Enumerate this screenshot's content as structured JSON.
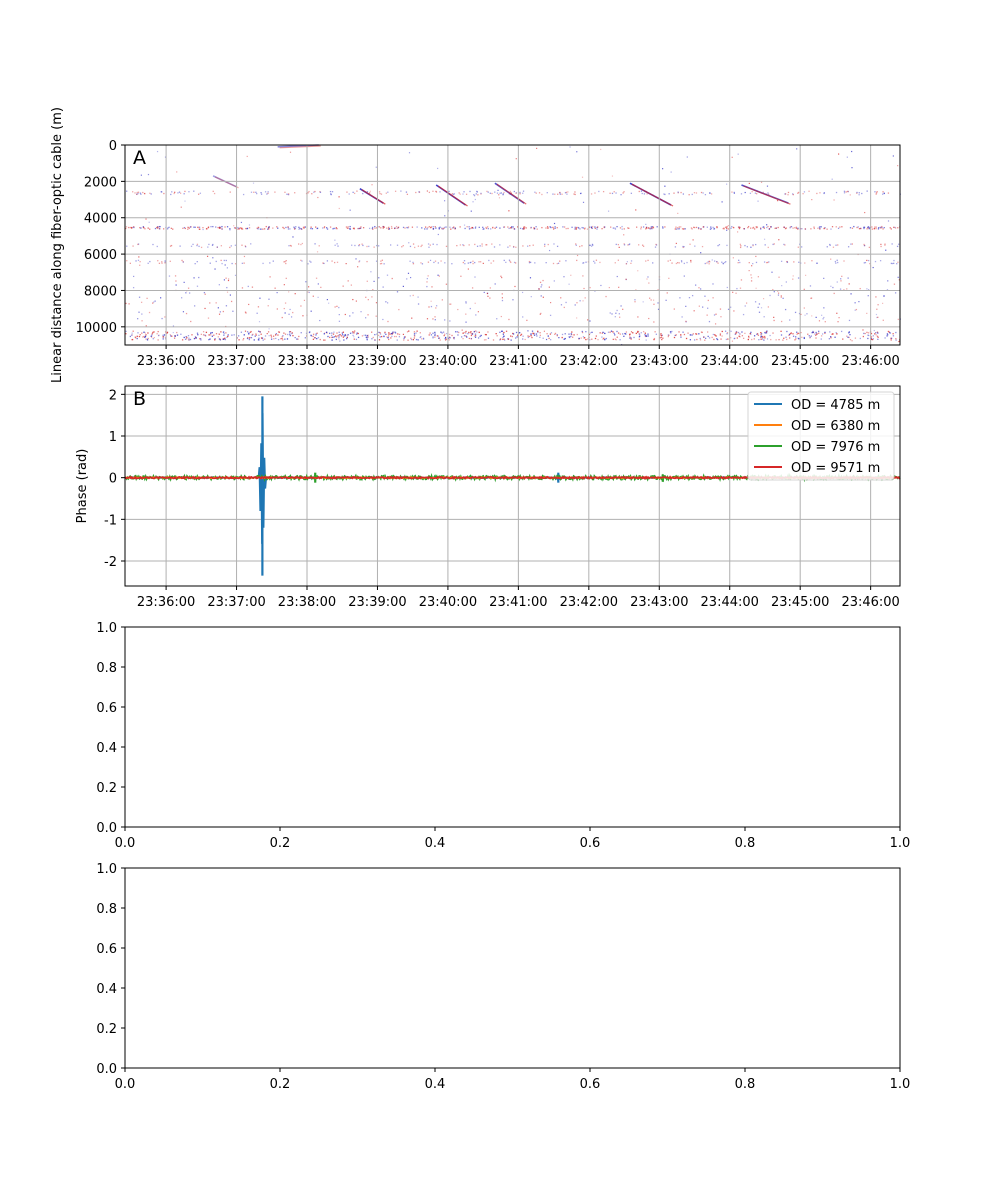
{
  "chart_data": [
    {
      "type": "heatmap",
      "panel_label": "A",
      "ylabel": "Linear distance along fiber-optic cable (m)",
      "xlabel": "",
      "ylim": [
        11000,
        0
      ],
      "yticks": [
        0,
        2000,
        4000,
        6000,
        8000,
        10000
      ],
      "xticks": [
        "23:36:00",
        "23:37:00",
        "23:38:00",
        "23:39:00",
        "23:40:00",
        "23:41:00",
        "23:42:00",
        "23:43:00",
        "23:44:00",
        "23:45:00",
        "23:46:00"
      ],
      "xlim": [
        "23:35:25",
        "23:46:25"
      ],
      "grid": true,
      "colors": {
        "positive": "#d62020",
        "negative": "#2020c0",
        "background": "#ffffff"
      },
      "bands_m": [
        {
          "from": 2500,
          "to": 2700,
          "level": 0.25
        },
        {
          "from": 4450,
          "to": 4600,
          "level": 0.55
        },
        {
          "from": 5400,
          "to": 5600,
          "level": 0.18
        },
        {
          "from": 6300,
          "to": 6500,
          "level": 0.2
        },
        {
          "from": 7100,
          "to": 9700,
          "level": 0.28
        },
        {
          "from": 10200,
          "to": 10700,
          "level": 0.8
        }
      ],
      "moveout_streaks": [
        {
          "t0": "23:38:45",
          "d0": 2400,
          "t1": "23:39:05",
          "d1": 3200,
          "strength": 1.0
        },
        {
          "t0": "23:39:50",
          "d0": 2200,
          "t1": "23:40:15",
          "d1": 3300,
          "strength": 1.0
        },
        {
          "t0": "23:40:40",
          "d0": 2100,
          "t1": "23:41:05",
          "d1": 3200,
          "strength": 0.9
        },
        {
          "t0": "23:42:35",
          "d0": 2100,
          "t1": "23:43:10",
          "d1": 3300,
          "strength": 1.0
        },
        {
          "t0": "23:44:10",
          "d0": 2200,
          "t1": "23:44:50",
          "d1": 3200,
          "strength": 0.9
        },
        {
          "t0": "23:37:35",
          "d0": 100,
          "t1": "23:38:10",
          "d1": 0,
          "strength": 0.6
        },
        {
          "t0": "23:36:40",
          "d0": 1700,
          "t1": "23:37:00",
          "d1": 2300,
          "strength": 0.5
        }
      ]
    },
    {
      "type": "line",
      "panel_label": "B",
      "ylabel": "Phase (rad)",
      "xlabel": "",
      "ylim": [
        -2.6,
        2.2
      ],
      "yticks": [
        -2,
        -1,
        0,
        1,
        2
      ],
      "xticks": [
        "23:36:00",
        "23:37:00",
        "23:38:00",
        "23:39:00",
        "23:40:00",
        "23:41:00",
        "23:42:00",
        "23:43:00",
        "23:44:00",
        "23:45:00",
        "23:46:00"
      ],
      "xlim": [
        "23:35:25",
        "23:46:25"
      ],
      "grid": true,
      "legend_position": "top-right",
      "series": [
        {
          "name": "OD = 4785 m",
          "color": "#1f77b4",
          "noise": 0.015,
          "events": [
            {
              "t": "23:37:22",
              "min": -2.35,
              "max": 1.95,
              "width": 3
            },
            {
              "t": "23:41:34",
              "min": -0.12,
              "max": 0.12,
              "width": 2
            }
          ]
        },
        {
          "name": "OD = 6380 m",
          "color": "#ff7f0e",
          "noise": 0.012,
          "events": []
        },
        {
          "name": "OD = 7976 m",
          "color": "#2ca02c",
          "noise": 0.045,
          "events": [
            {
              "t": "23:38:07",
              "min": -0.12,
              "max": 0.12,
              "width": 1
            },
            {
              "t": "23:43:03",
              "min": -0.1,
              "max": 0.08,
              "width": 1
            }
          ]
        },
        {
          "name": "OD = 9571 m",
          "color": "#d62728",
          "noise": 0.02,
          "events": []
        }
      ]
    },
    {
      "type": "line",
      "panel_label": "",
      "xlim": [
        0,
        1
      ],
      "ylim": [
        0,
        1
      ],
      "xticks": [
        "0.0",
        "0.2",
        "0.4",
        "0.6",
        "0.8",
        "1.0"
      ],
      "yticks": [
        "0.0",
        "0.2",
        "0.4",
        "0.6",
        "0.8",
        "1.0"
      ],
      "series": []
    },
    {
      "type": "line",
      "panel_label": "",
      "xlim": [
        0,
        1
      ],
      "ylim": [
        0,
        1
      ],
      "xticks": [
        "0.0",
        "0.2",
        "0.4",
        "0.6",
        "0.8",
        "1.0"
      ],
      "yticks": [
        "0.0",
        "0.2",
        "0.4",
        "0.6",
        "0.8",
        "1.0"
      ],
      "series": []
    }
  ]
}
